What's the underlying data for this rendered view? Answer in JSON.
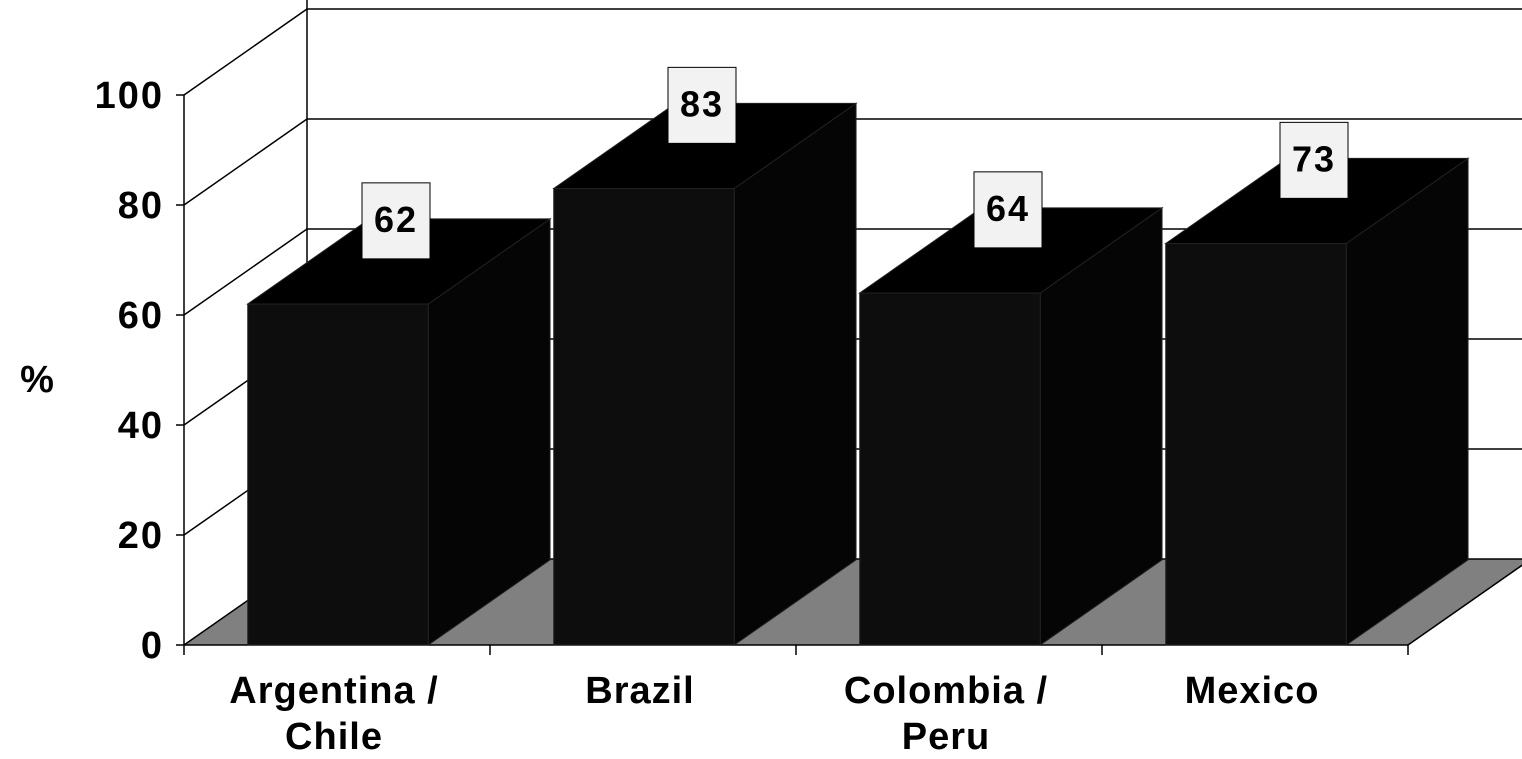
{
  "chart_data": {
    "type": "bar",
    "three_d": true,
    "categories": [
      [
        "Argentina /",
        "Chile"
      ],
      [
        "Brazil"
      ],
      [
        "Colombia /",
        "Peru"
      ],
      [
        "Mexico"
      ]
    ],
    "values": [
      62,
      83,
      64,
      73
    ],
    "data_labels": [
      "62",
      "83",
      "64",
      "73"
    ],
    "ylabel": "%",
    "ylim": [
      0,
      100
    ],
    "yticks": [
      "0",
      "20",
      "40",
      "60",
      "80",
      "100"
    ],
    "grid": true,
    "legend": "none",
    "colors": {
      "bar_front": "#0d0d0d",
      "bar_top": "#000000",
      "bar_side": "#050505",
      "floor": "#808080",
      "label_box": "#f2f2f2"
    }
  }
}
